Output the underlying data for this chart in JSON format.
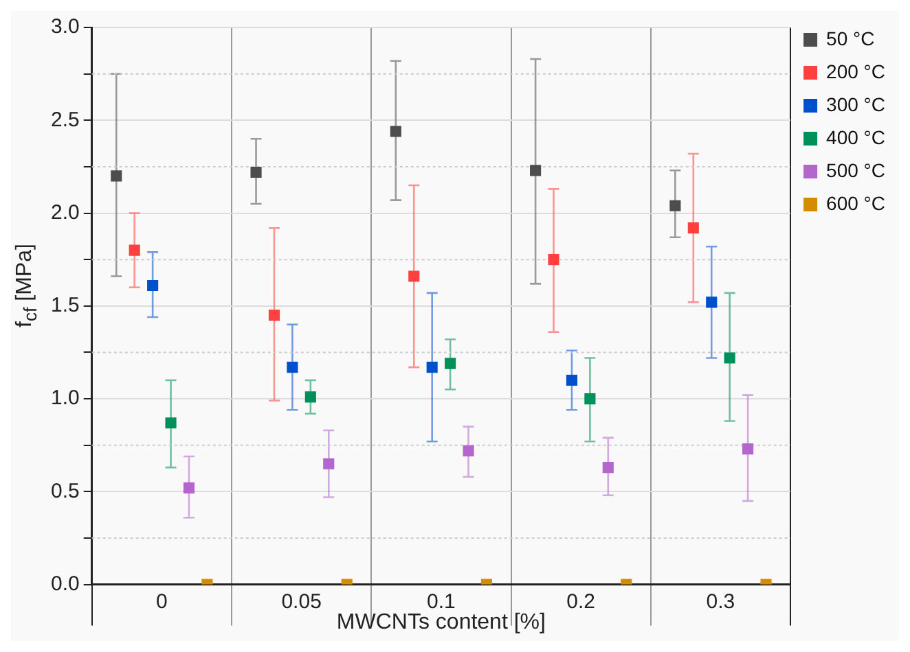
{
  "chart_data": {
    "type": "scatter",
    "xlabel": "MWCNTs content [%]",
    "ylabel": "f$_{cf}$ [MPa]",
    "categories": [
      "0",
      "0.05",
      "0.1",
      "0.2",
      "0.3"
    ],
    "series": [
      {
        "name": "50 °C",
        "color": "#4d4d4d",
        "values": [
          2.2,
          2.22,
          2.44,
          2.23,
          2.04
        ],
        "errors": [
          [
            1.66,
            2.75
          ],
          [
            2.05,
            2.4
          ],
          [
            2.07,
            2.82
          ],
          [
            1.62,
            2.83
          ],
          [
            1.87,
            2.23
          ]
        ]
      },
      {
        "name": "200 °C",
        "color": "#ff4040",
        "values": [
          1.8,
          1.45,
          1.66,
          1.75,
          1.92
        ],
        "errors": [
          [
            1.6,
            2.0
          ],
          [
            0.99,
            1.92
          ],
          [
            1.17,
            2.15
          ],
          [
            1.36,
            2.13
          ],
          [
            1.52,
            2.32
          ]
        ]
      },
      {
        "name": "300 °C",
        "color": "#0050cc",
        "values": [
          1.61,
          1.17,
          1.17,
          1.1,
          1.52
        ],
        "errors": [
          [
            1.44,
            1.79
          ],
          [
            0.94,
            1.4
          ],
          [
            0.77,
            1.57
          ],
          [
            0.94,
            1.26
          ],
          [
            1.22,
            1.82
          ]
        ]
      },
      {
        "name": "400 °C",
        "color": "#00905a",
        "values": [
          0.87,
          1.01,
          1.19,
          1.0,
          1.22
        ],
        "errors": [
          [
            0.63,
            1.1
          ],
          [
            0.92,
            1.1
          ],
          [
            1.05,
            1.32
          ],
          [
            0.77,
            1.22
          ],
          [
            0.88,
            1.57
          ]
        ]
      },
      {
        "name": "500 °C",
        "color": "#b366cc",
        "values": [
          0.52,
          0.65,
          0.72,
          0.63,
          0.73
        ],
        "errors": [
          [
            0.36,
            0.69
          ],
          [
            0.47,
            0.83
          ],
          [
            0.58,
            0.85
          ],
          [
            0.48,
            0.79
          ],
          [
            0.45,
            1.02
          ]
        ]
      },
      {
        "name": "600 °C",
        "color": "#d48c00",
        "values": [
          0,
          0,
          0,
          0,
          0
        ]
      }
    ],
    "ylim": [
      0,
      3
    ],
    "yticks": [
      {
        "value": 0,
        "label": "0.0"
      },
      {
        "value": 0.25,
        "label": null
      },
      0.5,
      {
        "value": 0.75,
        "label": null
      },
      {
        "value": 1,
        "label": "1.0"
      },
      {
        "value": 1.25,
        "label": null
      },
      1.5,
      {
        "value": 1.75,
        "label": null
      },
      {
        "value": 2,
        "label": "2.0"
      },
      {
        "value": 2.25,
        "label": null
      },
      2.5,
      {
        "value": 2.75,
        "label": null
      },
      {
        "value": 3,
        "label": "3.0"
      }
    ],
    "grid": true,
    "legend": "top right",
    "marker": "square"
  }
}
